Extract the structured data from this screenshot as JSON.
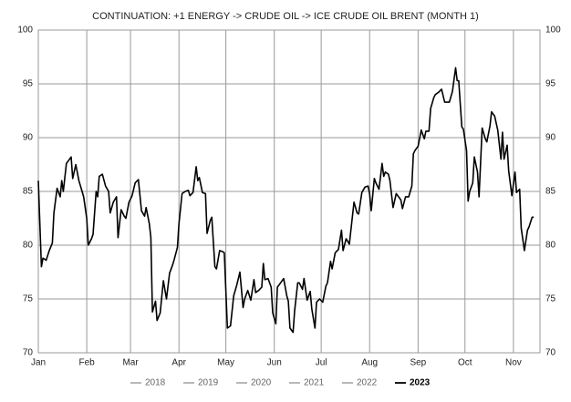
{
  "chart_data": {
    "type": "line",
    "title": "CONTINUATION: +1 ENERGY -> CRUDE OIL -> ICE CRUDE OIL BRENT (MONTH 1)",
    "x": [
      0,
      2,
      3,
      5,
      7,
      9,
      10,
      12,
      14,
      15,
      16,
      18,
      21,
      22,
      24,
      26,
      28,
      29,
      31,
      32,
      34,
      35,
      37,
      38,
      39,
      41,
      43,
      45,
      46,
      48,
      50,
      51,
      53,
      55,
      56,
      58,
      59,
      60,
      62,
      64,
      66,
      68,
      69,
      71,
      72,
      73,
      75,
      76,
      78,
      80,
      82,
      84,
      86,
      87,
      89,
      90,
      92,
      94,
      96,
      97,
      99,
      101,
      102,
      103,
      105,
      107,
      108,
      110,
      111,
      113,
      114,
      116,
      118,
      119,
      121,
      123,
      125,
      127,
      129,
      131,
      132,
      134,
      136,
      138,
      139,
      141,
      143,
      144,
      145,
      147,
      149,
      150,
      152,
      153,
      155,
      157,
      159,
      160,
      161,
      163,
      164,
      166,
      167,
      169,
      170,
      172,
      174,
      175,
      177,
      178,
      180,
      182,
      184,
      185,
      187,
      188,
      190,
      192,
      194,
      195,
      197,
      199,
      201,
      202,
      204,
      205,
      207,
      209,
      211,
      212,
      213,
      215,
      216,
      218,
      220,
      221,
      222,
      224,
      225,
      227,
      229,
      230,
      232,
      233,
      235,
      237,
      239,
      240,
      241,
      243,
      245,
      247,
      248,
      250,
      251,
      253,
      254,
      256,
      258,
      260,
      261,
      263,
      265,
      267,
      268,
      269,
      271,
      272,
      274,
      275,
      276,
      278,
      279,
      281,
      282,
      284,
      286,
      287,
      289,
      290,
      292,
      294,
      296,
      297,
      298,
      300,
      301,
      303,
      305,
      306,
      308,
      309,
      311,
      313,
      314,
      316,
      317
    ],
    "series": [
      {
        "name": "2023",
        "color": "#000000",
        "values": [
          86.0,
          78.0,
          78.8,
          78.6,
          79.5,
          80.2,
          83,
          85.3,
          84.5,
          86,
          85,
          87.6,
          88.2,
          86.2,
          87.5,
          86,
          85,
          84.5,
          82.5,
          80,
          80.6,
          81,
          85,
          84.5,
          86.4,
          86.6,
          85.5,
          85,
          83,
          84,
          84.5,
          80.7,
          83.3,
          82.7,
          82.5,
          84,
          84.3,
          84.6,
          85.8,
          86.1,
          83.2,
          82.7,
          83.5,
          82,
          80.7,
          73.8,
          74.8,
          73,
          73.7,
          76.7,
          75,
          77.4,
          78.2,
          78.7,
          79.8,
          82,
          84.8,
          85,
          85.1,
          84.6,
          84.9,
          87.3,
          86,
          86.3,
          84.9,
          84.8,
          81.1,
          82.3,
          82.6,
          78,
          77.8,
          79.5,
          79.4,
          79.3,
          72.3,
          72.5,
          75.3,
          76.3,
          77.5,
          74.2,
          75,
          75.8,
          74.9,
          76.8,
          75.6,
          75.8,
          76.1,
          78.3,
          76.8,
          76.9,
          76.1,
          73.7,
          72.7,
          76.1,
          76.5,
          76.9,
          75.3,
          74.8,
          72.3,
          71.9,
          73.9,
          76.5,
          76.5,
          75.9,
          76.9,
          74.9,
          75.7,
          74.1,
          72.3,
          74.7,
          75,
          74.7,
          76.2,
          76.5,
          78.5,
          77.8,
          79.3,
          79.6,
          81.4,
          79.5,
          80.6,
          80.1,
          82.7,
          84,
          83,
          82.9,
          84.9,
          85.4,
          85.5,
          84.8,
          83.2,
          86.2,
          85.8,
          85.2,
          87.6,
          86.4,
          86.8,
          86.6,
          86,
          83.5,
          84.8,
          84.6,
          84.2,
          83.4,
          84.5,
          84.5,
          85.5,
          88.5,
          88.8,
          89.2,
          90.7,
          89.9,
          90.6,
          90.6,
          92.7,
          93.7,
          94,
          94.2,
          94.5,
          93.3,
          93.3,
          93.3,
          94.3,
          96.5,
          95.3,
          95.3,
          91,
          90.8,
          88.8,
          84.1,
          85,
          85.8,
          88.2,
          86.8,
          84.5,
          90.9,
          89.9,
          89.6,
          91.1,
          92.4,
          92,
          90.7,
          88,
          90.5,
          88,
          89.3,
          86.9,
          84.6,
          86.8,
          84.9,
          85.2,
          81.6,
          79.5,
          81.4,
          81.7,
          82.6,
          82.6
        ]
      }
    ],
    "hidden_series": [
      {
        "name": "2018",
        "color": "#888888"
      },
      {
        "name": "2019",
        "color": "#888888"
      },
      {
        "name": "2020",
        "color": "#888888"
      },
      {
        "name": "2021",
        "color": "#888888"
      },
      {
        "name": "2022",
        "color": "#888888"
      }
    ],
    "xlim": [
      0,
      321
    ],
    "xticks": [
      {
        "value": 0,
        "label": "Jan"
      },
      {
        "value": 31,
        "label": "Feb"
      },
      {
        "value": 59,
        "label": "Mar"
      },
      {
        "value": 90,
        "label": "Apr"
      },
      {
        "value": 120,
        "label": "May"
      },
      {
        "value": 151,
        "label": "Jun"
      },
      {
        "value": 181,
        "label": "Jul"
      },
      {
        "value": 212,
        "label": "Aug"
      },
      {
        "value": 243,
        "label": "Sep"
      },
      {
        "value": 273,
        "label": "Oct"
      },
      {
        "value": 304,
        "label": "Nov"
      }
    ],
    "ylim": [
      70,
      100
    ],
    "yticks": [
      70,
      75,
      80,
      85,
      90,
      95,
      100
    ],
    "y2lim": [
      70,
      100
    ],
    "y2ticks": [
      70,
      75,
      80,
      85,
      90,
      95,
      100
    ],
    "grid": true
  }
}
